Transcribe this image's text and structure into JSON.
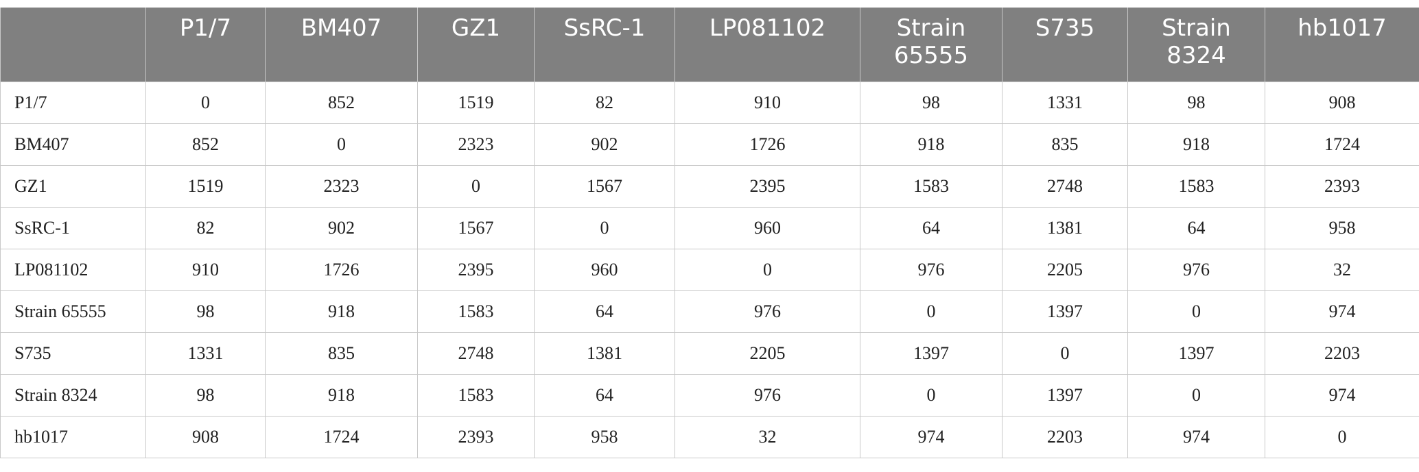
{
  "table": {
    "header": [
      "P1/7",
      "BM407",
      "GZ1",
      "SsRC-1",
      "LP081102",
      "Strain 65555",
      "S735",
      "Strain 8324",
      "hb1017"
    ],
    "rows": [
      {
        "label": "P1/7",
        "values": [
          0,
          852,
          1519,
          82,
          910,
          98,
          1331,
          98,
          908
        ]
      },
      {
        "label": "BM407",
        "values": [
          852,
          0,
          2323,
          902,
          1726,
          918,
          835,
          918,
          1724
        ]
      },
      {
        "label": "GZ1",
        "values": [
          1519,
          2323,
          0,
          1567,
          2395,
          1583,
          2748,
          1583,
          2393
        ]
      },
      {
        "label": "SsRC-1",
        "values": [
          82,
          902,
          1567,
          0,
          960,
          64,
          1381,
          64,
          958
        ]
      },
      {
        "label": "LP081102",
        "values": [
          910,
          1726,
          2395,
          960,
          0,
          976,
          2205,
          976,
          32
        ]
      },
      {
        "label": "Strain 65555",
        "values": [
          98,
          918,
          1583,
          64,
          976,
          0,
          1397,
          0,
          974
        ]
      },
      {
        "label": "S735",
        "values": [
          1331,
          835,
          2748,
          1381,
          2205,
          1397,
          0,
          1397,
          2203
        ]
      },
      {
        "label": "Strain 8324",
        "values": [
          98,
          918,
          1583,
          64,
          976,
          0,
          1397,
          0,
          974
        ]
      },
      {
        "label": "hb1017",
        "values": [
          908,
          1724,
          2393,
          958,
          32,
          974,
          2203,
          974,
          0
        ]
      }
    ]
  }
}
